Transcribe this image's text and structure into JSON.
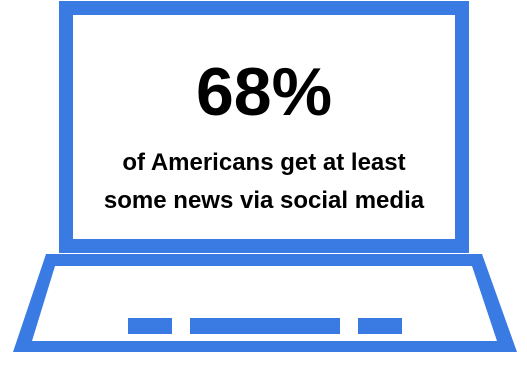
{
  "stat": {
    "value": "68%",
    "caption_line1": "of Americans get at least",
    "caption_line2": "some news via social media"
  },
  "icon": "laptop-icon",
  "colors": {
    "accent": "#3a7be3",
    "background": "#ffffff",
    "text": "#000000"
  }
}
